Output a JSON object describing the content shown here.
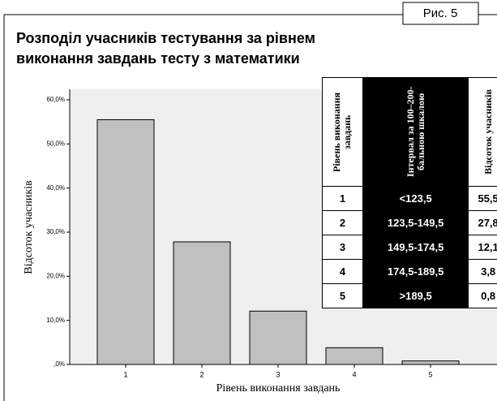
{
  "chart_data": {
    "type": "bar",
    "badge": "Рис. 5",
    "title_lines": [
      "Розподіл учасників тестування за рівнем",
      "виконання завдань тесту з математики"
    ],
    "y_label": "Відсоток учасників",
    "x_label": "Рівень виконання завдань",
    "categories": [
      "1",
      "2",
      "3",
      "4",
      "5"
    ],
    "values": [
      55.5,
      27.8,
      12.1,
      3.8,
      0.8
    ],
    "color": "#c0c0c0",
    "ylim": [
      0,
      60
    ],
    "yticks": [
      {
        "value": 0,
        "label": ",0%"
      },
      {
        "value": 10,
        "label": "10,0%"
      },
      {
        "value": 20,
        "label": "20,0%"
      },
      {
        "value": 30,
        "label": "30,0%"
      },
      {
        "value": 40,
        "label": "40,0%"
      },
      {
        "value": 50,
        "label": "50,0%"
      },
      {
        "value": 60,
        "label": "60,0%"
      }
    ],
    "table": {
      "headers": [
        "Рівень виконання завдань",
        "Інтервал за 100–200-бальною шкалою",
        "Відсоток учасників"
      ],
      "rows": [
        [
          "1",
          "<123,5",
          "55,5"
        ],
        [
          "2",
          "123,5-149,5",
          "27,8"
        ],
        [
          "3",
          "149,5-174,5",
          "12,1"
        ],
        [
          "4",
          "174,5-189,5",
          "3,8"
        ],
        [
          "5",
          ">189,5",
          "0,8"
        ]
      ]
    }
  }
}
